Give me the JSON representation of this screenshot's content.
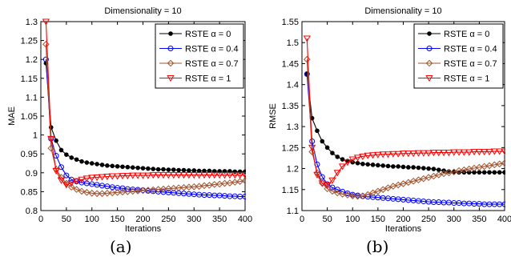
{
  "colors": {
    "alpha0": "#000000",
    "alpha04": "#0000ff",
    "alpha07": "#a0522d",
    "alpha1": "#ff0000"
  },
  "captions": [
    "(a)",
    "(b)"
  ],
  "chart_data": [
    {
      "type": "line",
      "title": "Dimensionality = 10",
      "xlabel": "Iterations",
      "ylabel": "MAE",
      "xlim": [
        0,
        400
      ],
      "ylim": [
        0.8,
        1.3
      ],
      "xticks": [
        "0",
        "50",
        "100",
        "150",
        "200",
        "250",
        "300",
        "350",
        "400"
      ],
      "yticks": [
        "0.8",
        "0.85",
        "0.9",
        "0.95",
        "1",
        "1.05",
        "1.1",
        "1.15",
        "1.2",
        "1.25",
        "1.3"
      ],
      "legend_position": "top-right",
      "x": [
        10,
        20,
        30,
        40,
        50,
        60,
        70,
        80,
        90,
        100,
        110,
        120,
        130,
        140,
        150,
        160,
        170,
        180,
        190,
        200,
        210,
        220,
        230,
        240,
        250,
        260,
        270,
        280,
        290,
        300,
        310,
        320,
        330,
        340,
        350,
        360,
        370,
        380,
        390,
        400
      ],
      "series": [
        {
          "name": "RSTE α = 0",
          "marker": "dot",
          "color": "#000000",
          "values": [
            1.19,
            1.02,
            0.985,
            0.96,
            0.948,
            0.94,
            0.935,
            0.93,
            0.927,
            0.925,
            0.923,
            0.921,
            0.919,
            0.918,
            0.917,
            0.916,
            0.915,
            0.914,
            0.913,
            0.912,
            0.911,
            0.91,
            0.909,
            0.909,
            0.908,
            0.908,
            0.907,
            0.907,
            0.906,
            0.906,
            0.905,
            0.905,
            0.905,
            0.904,
            0.904,
            0.904,
            0.904,
            0.903,
            0.903,
            0.903
          ]
        },
        {
          "name": "RSTE α = 0.4",
          "marker": "circle",
          "color": "#0000ff",
          "values": [
            1.2,
            0.99,
            0.945,
            0.915,
            0.893,
            0.882,
            0.877,
            0.874,
            0.872,
            0.87,
            0.868,
            0.866,
            0.864,
            0.862,
            0.86,
            0.859,
            0.857,
            0.856,
            0.855,
            0.854,
            0.852,
            0.851,
            0.85,
            0.849,
            0.848,
            0.847,
            0.846,
            0.845,
            0.844,
            0.843,
            0.842,
            0.841,
            0.841,
            0.84,
            0.84,
            0.839,
            0.838,
            0.838,
            0.837,
            0.837
          ]
        },
        {
          "name": "RSTE α = 0.7",
          "marker": "diamond",
          "color": "#a0522d",
          "values": [
            1.24,
            0.965,
            0.91,
            0.888,
            0.872,
            0.862,
            0.856,
            0.851,
            0.848,
            0.846,
            0.845,
            0.845,
            0.846,
            0.847,
            0.848,
            0.849,
            0.85,
            0.851,
            0.852,
            0.853,
            0.854,
            0.855,
            0.856,
            0.857,
            0.858,
            0.859,
            0.86,
            0.861,
            0.862,
            0.863,
            0.864,
            0.866,
            0.867,
            0.869,
            0.87,
            0.872,
            0.873,
            0.875,
            0.877,
            0.879
          ]
        },
        {
          "name": "RSTE α = 1",
          "marker": "triangle-down",
          "color": "#ff0000",
          "values": [
            1.3,
            0.99,
            0.905,
            0.88,
            0.868,
            0.873,
            0.878,
            0.882,
            0.885,
            0.887,
            0.888,
            0.889,
            0.89,
            0.891,
            0.891,
            0.892,
            0.892,
            0.893,
            0.893,
            0.893,
            0.893,
            0.894,
            0.894,
            0.894,
            0.894,
            0.894,
            0.894,
            0.894,
            0.894,
            0.894,
            0.894,
            0.894,
            0.894,
            0.894,
            0.894,
            0.894,
            0.894,
            0.894,
            0.894,
            0.894
          ]
        }
      ]
    },
    {
      "type": "line",
      "title": "Dimensionality = 10",
      "xlabel": "Iterations",
      "ylabel": "RMSE",
      "xlim": [
        0,
        400
      ],
      "ylim": [
        1.1,
        1.55
      ],
      "xticks": [
        "0",
        "50",
        "100",
        "150",
        "200",
        "250",
        "300",
        "350",
        "400"
      ],
      "yticks": [
        "1.1",
        "1.15",
        "1.2",
        "1.25",
        "1.3",
        "1.35",
        "1.4",
        "1.45",
        "1.5",
        "1.55"
      ],
      "legend_position": "top-right",
      "x": [
        10,
        20,
        30,
        40,
        50,
        60,
        70,
        80,
        90,
        100,
        110,
        120,
        130,
        140,
        150,
        160,
        170,
        180,
        190,
        200,
        210,
        220,
        230,
        240,
        250,
        260,
        270,
        280,
        290,
        300,
        310,
        320,
        330,
        340,
        350,
        360,
        370,
        380,
        390,
        400
      ],
      "series": [
        {
          "name": "RSTE α = 0",
          "marker": "dot",
          "color": "#000000",
          "values": [
            1.425,
            1.32,
            1.29,
            1.265,
            1.25,
            1.237,
            1.228,
            1.222,
            1.218,
            1.215,
            1.213,
            1.211,
            1.21,
            1.209,
            1.208,
            1.207,
            1.206,
            1.205,
            1.205,
            1.204,
            1.203,
            1.203,
            1.202,
            1.201,
            1.2,
            1.199,
            1.197,
            1.195,
            1.193,
            1.192,
            1.191,
            1.191,
            1.191,
            1.191,
            1.191,
            1.191,
            1.191,
            1.191,
            1.191,
            1.191
          ]
        },
        {
          "name": "RSTE α = 0.4",
          "marker": "circle",
          "color": "#0000ff",
          "values": [
            1.425,
            1.265,
            1.21,
            1.18,
            1.163,
            1.155,
            1.15,
            1.145,
            1.141,
            1.138,
            1.136,
            1.134,
            1.133,
            1.132,
            1.131,
            1.13,
            1.129,
            1.128,
            1.127,
            1.126,
            1.125,
            1.124,
            1.123,
            1.122,
            1.121,
            1.12,
            1.12,
            1.119,
            1.119,
            1.118,
            1.118,
            1.117,
            1.117,
            1.116,
            1.116,
            1.115,
            1.115,
            1.115,
            1.115,
            1.115
          ]
        },
        {
          "name": "RSTE α = 0.7",
          "marker": "diamond",
          "color": "#a0522d",
          "values": [
            1.46,
            1.24,
            1.19,
            1.165,
            1.152,
            1.146,
            1.142,
            1.139,
            1.137,
            1.135,
            1.134,
            1.135,
            1.138,
            1.142,
            1.146,
            1.15,
            1.154,
            1.158,
            1.161,
            1.164,
            1.167,
            1.17,
            1.173,
            1.176,
            1.179,
            1.182,
            1.185,
            1.188,
            1.19,
            1.192,
            1.195,
            1.197,
            1.199,
            1.201,
            1.203,
            1.205,
            1.207,
            1.209,
            1.211,
            1.213
          ]
        },
        {
          "name": "RSTE α = 1",
          "marker": "triangle-down",
          "color": "#ff0000",
          "values": [
            1.51,
            1.25,
            1.185,
            1.165,
            1.16,
            1.172,
            1.19,
            1.205,
            1.215,
            1.222,
            1.226,
            1.229,
            1.231,
            1.232,
            1.233,
            1.234,
            1.234,
            1.235,
            1.235,
            1.236,
            1.236,
            1.236,
            1.237,
            1.237,
            1.237,
            1.238,
            1.238,
            1.238,
            1.238,
            1.239,
            1.239,
            1.239,
            1.239,
            1.24,
            1.24,
            1.24,
            1.24,
            1.241,
            1.241,
            1.241
          ]
        }
      ]
    }
  ]
}
